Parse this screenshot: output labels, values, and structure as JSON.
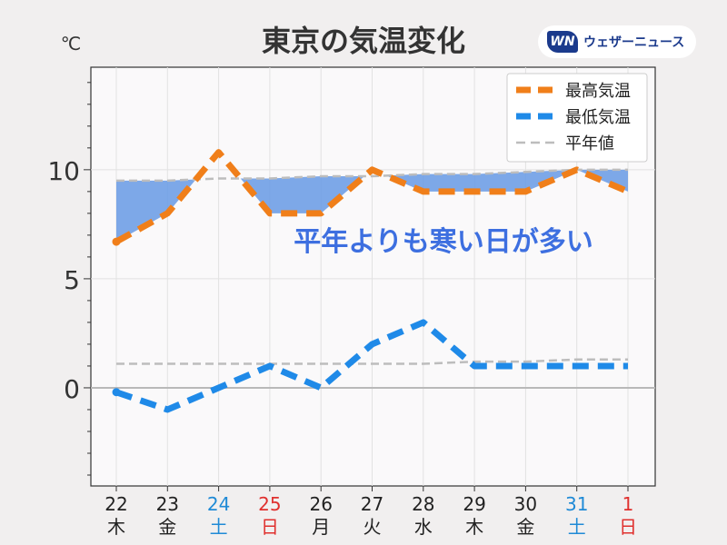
{
  "header": {
    "title": "東京の気温変化",
    "unit": "℃",
    "logo_mark": "WN",
    "logo_text": "ウェザーニュース"
  },
  "chart_data": {
    "type": "line",
    "title": "東京の気温変化",
    "ylabel": "℃",
    "ylim": [
      -4.5,
      14.7
    ],
    "yticks": [
      0,
      5,
      10
    ],
    "grid": true,
    "legend_placement": "top-right",
    "annotation": "平年よりも寒い日が多い",
    "categories": [
      {
        "day": "22",
        "weekday": "木",
        "color": "#222222"
      },
      {
        "day": "23",
        "weekday": "金",
        "color": "#222222"
      },
      {
        "day": "24",
        "weekday": "土",
        "color": "#1f8ad6"
      },
      {
        "day": "25",
        "weekday": "日",
        "color": "#e0302e"
      },
      {
        "day": "26",
        "weekday": "月",
        "color": "#222222"
      },
      {
        "day": "27",
        "weekday": "火",
        "color": "#222222"
      },
      {
        "day": "28",
        "weekday": "水",
        "color": "#222222"
      },
      {
        "day": "29",
        "weekday": "木",
        "color": "#222222"
      },
      {
        "day": "30",
        "weekday": "金",
        "color": "#222222"
      },
      {
        "day": "31",
        "weekday": "土",
        "color": "#1f8ad6"
      },
      {
        "day": "1",
        "weekday": "日",
        "color": "#e0302e"
      }
    ],
    "series": [
      {
        "name": "最高気温",
        "color": "#f07f1a",
        "style": "dashed",
        "values": [
          6.7,
          8.0,
          10.8,
          8.0,
          8.0,
          10.0,
          9.0,
          9.0,
          9.0,
          10.0,
          9.0
        ]
      },
      {
        "name": "最低気温",
        "color": "#1f8ae8",
        "style": "dashed",
        "values": [
          -0.2,
          -1.0,
          0.0,
          1.0,
          0.0,
          2.0,
          3.0,
          1.0,
          1.0,
          1.0,
          1.0
        ]
      },
      {
        "name": "平年値",
        "color": "#bdbdbd",
        "style": "dashed",
        "values": [
          9.5,
          9.5,
          9.6,
          9.6,
          9.7,
          9.7,
          9.8,
          9.8,
          9.9,
          10.0,
          10.0
        ]
      },
      {
        "name": "平年値",
        "color": "#bdbdbd",
        "style": "dashed",
        "values": [
          1.1,
          1.1,
          1.1,
          1.1,
          1.1,
          1.1,
          1.1,
          1.2,
          1.2,
          1.3,
          1.3
        ]
      }
    ],
    "fill_color": "#6f9fe6"
  }
}
